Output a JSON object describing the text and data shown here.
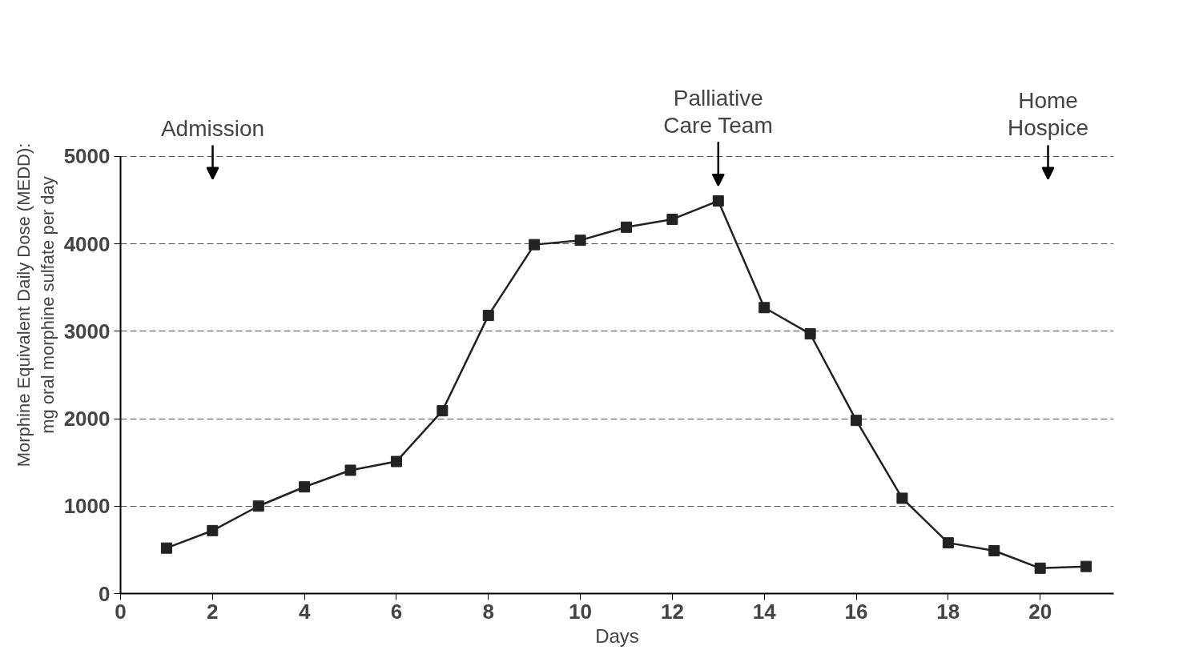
{
  "chart_data": {
    "type": "line",
    "xlabel": "Days",
    "ylabel": "Morphine Equivalent Daily Dose (MEDD):\nmg oral morphine sulfate per day",
    "x": [
      1,
      2,
      3,
      4,
      5,
      6,
      7,
      8,
      9,
      10,
      11,
      12,
      13,
      14,
      15,
      16,
      17,
      18,
      19,
      20,
      21
    ],
    "series": [
      {
        "color": "#222222",
        "values": [
          520,
          720,
          1000,
          1220,
          1410,
          1510,
          2090,
          3180,
          3990,
          4040,
          4190,
          4280,
          4490,
          3270,
          2970,
          1980,
          1090,
          580,
          490,
          290,
          310
        ]
      }
    ],
    "xlim": [
      0,
      21.6
    ],
    "xticks": [
      0,
      2,
      4,
      6,
      8,
      10,
      12,
      14,
      16,
      18,
      20
    ],
    "ylim": [
      0,
      5000
    ],
    "yticks": [
      0,
      1000,
      2000,
      3000,
      4000,
      5000
    ],
    "grid": "y",
    "marker": "square",
    "line_style": "solid",
    "annotations": [
      "Admission",
      {
        "text": "Palliative\nCare Team",
        "x": 13,
        "y": 4490
      },
      "Home\nHospice"
    ]
  }
}
